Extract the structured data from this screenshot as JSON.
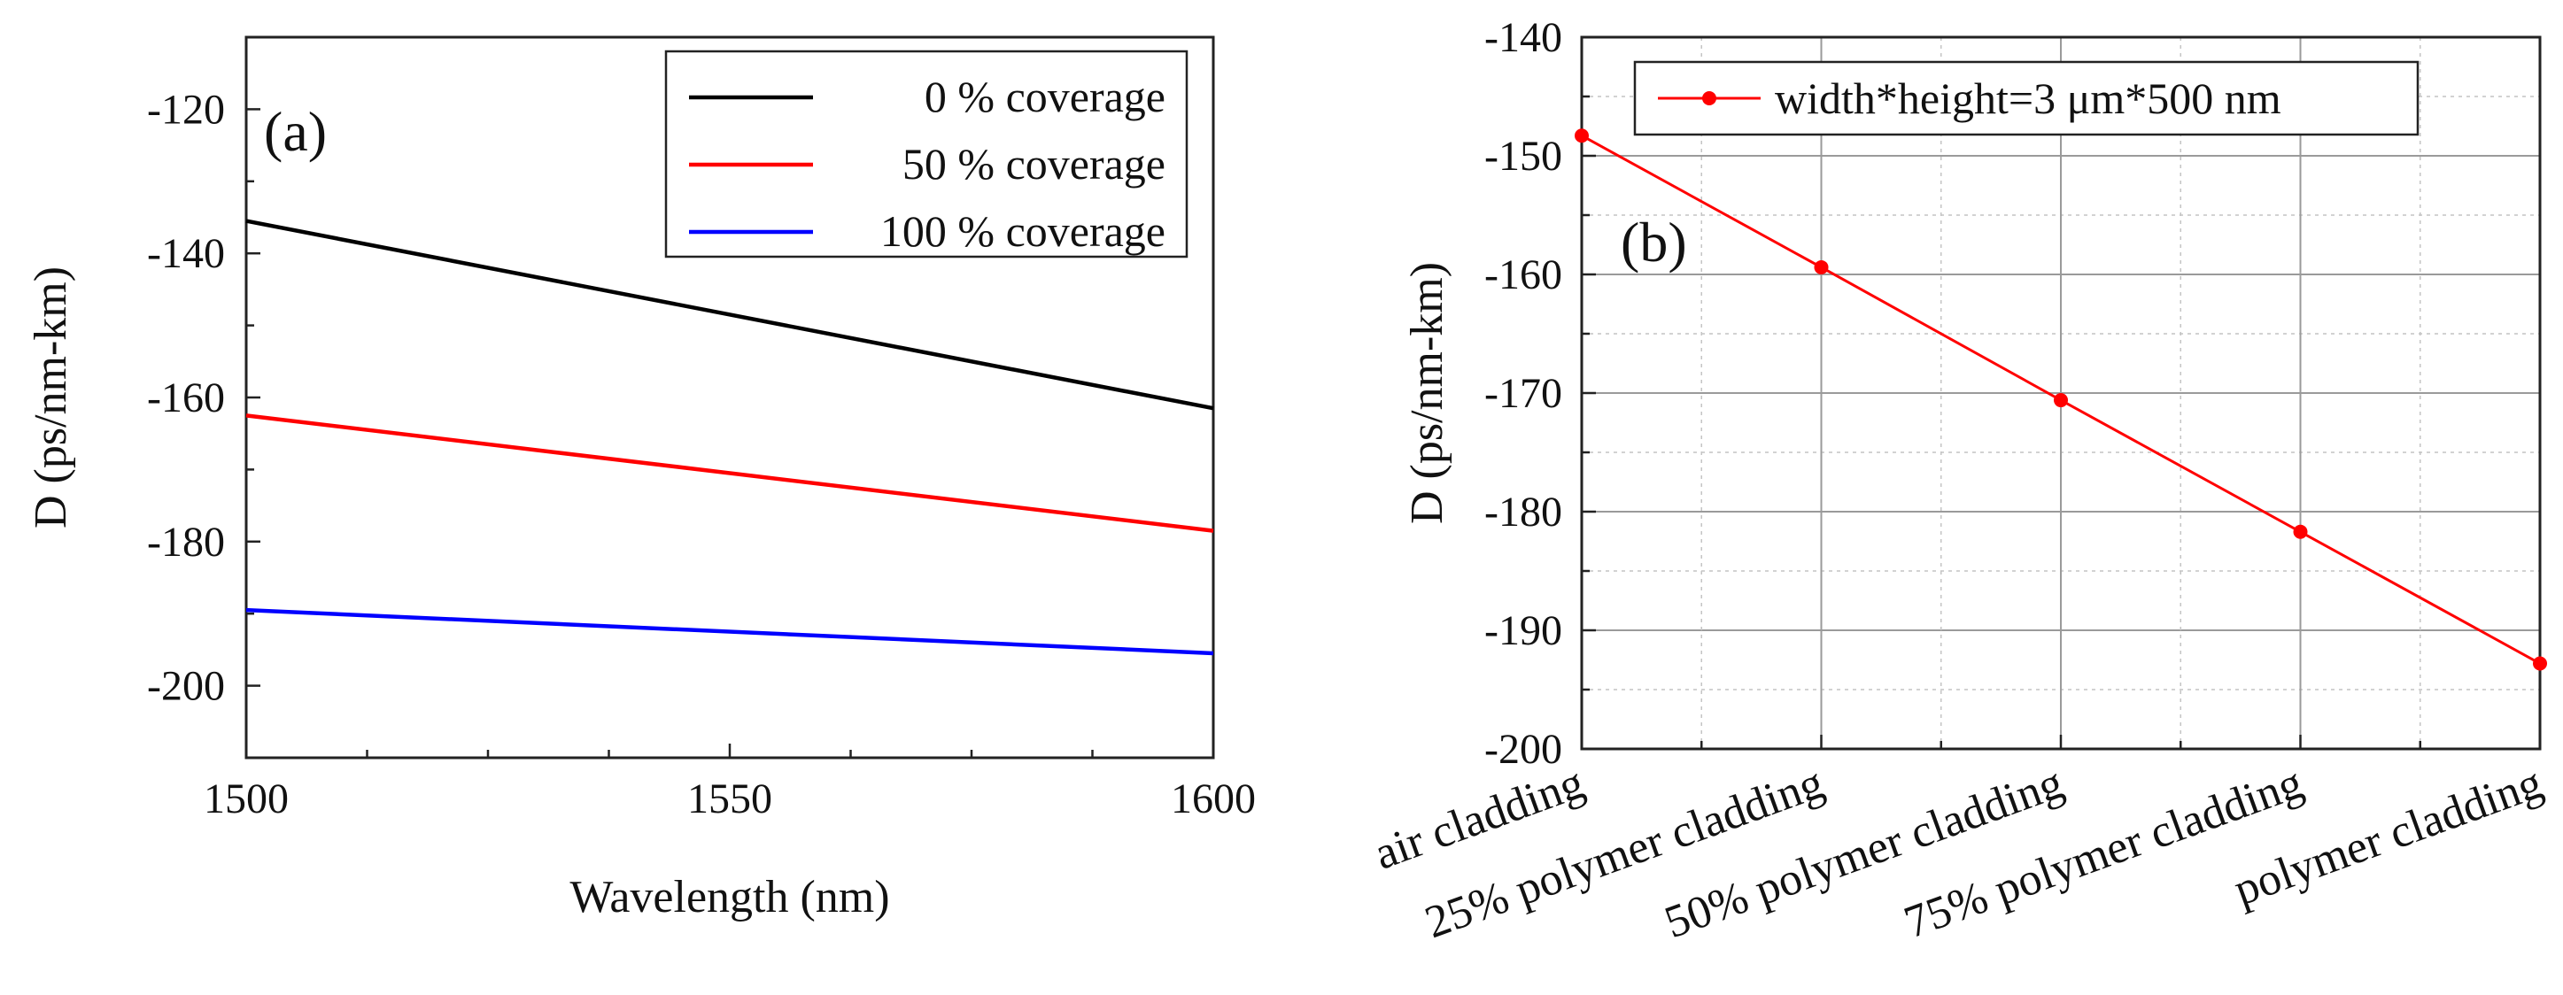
{
  "chart_data": [
    {
      "type": "line",
      "panel_label": "(a)",
      "xlabel": "Wavelength (nm)",
      "ylabel": "D (ps/nm-km)",
      "xlim": [
        1500,
        1600
      ],
      "ylim": [
        -210,
        -110
      ],
      "x_ticks": [
        1500,
        1550,
        1600
      ],
      "y_ticks": [
        -200,
        -180,
        -160,
        -140,
        -120
      ],
      "x_tick_labels": [
        "1500",
        "1550",
        "1600"
      ],
      "y_tick_labels": [
        "-200",
        "-180",
        "-160",
        "-140",
        "-120"
      ],
      "grid": false,
      "legend_position": "top-right",
      "series": [
        {
          "name": "0 % coverage",
          "color": "#000000",
          "x": [
            1500,
            1600
          ],
          "y": [
            -135.5,
            -161.5
          ]
        },
        {
          "name": "50 % coverage",
          "color": "#ff0000",
          "x": [
            1500,
            1600
          ],
          "y": [
            -162.5,
            -178.5
          ]
        },
        {
          "name": "100 % coverage",
          "color": "#0000ff",
          "x": [
            1500,
            1600
          ],
          "y": [
            -189.5,
            -195.5
          ]
        }
      ]
    },
    {
      "type": "line",
      "panel_label": "(b)",
      "xlabel": "",
      "ylabel": "D (ps/nm-km)",
      "ylim": [
        -200,
        -140
      ],
      "y_ticks": [
        -200,
        -190,
        -180,
        -170,
        -160,
        -150,
        -140
      ],
      "y_tick_labels": [
        "-200",
        "-190",
        "-180",
        "-170",
        "-160",
        "-150",
        "-140"
      ],
      "categories": [
        "air cladding",
        "25% polymer cladding",
        "50% polymer cladding",
        "75% polymer cladding",
        "polymer cladding"
      ],
      "grid": true,
      "legend_position": "top-left",
      "series": [
        {
          "name": "width*height=3 μm*500 nm",
          "color": "#ff0000",
          "values": [
            -148.3,
            -159.4,
            -170.6,
            -181.7,
            -192.8
          ]
        }
      ]
    }
  ]
}
